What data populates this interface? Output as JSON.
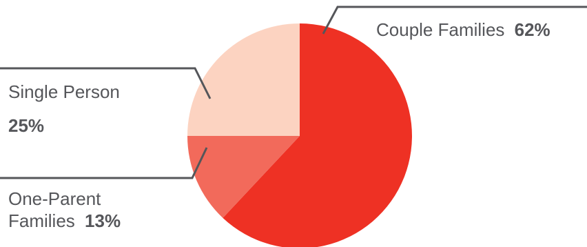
{
  "chart_data": {
    "type": "pie",
    "slices": [
      {
        "label": "Couple Families",
        "value": 62,
        "value_label": "62%",
        "color": "#ee3124"
      },
      {
        "label": "One-Parent Families",
        "value": 13,
        "value_label": "13%",
        "color": "#f26a5b"
      },
      {
        "label": "Single Person",
        "value": 25,
        "value_label": "25%",
        "color": "#fcd3c1"
      }
    ],
    "labels": {
      "couple": {
        "text": "Couple Families",
        "pct": "62%"
      },
      "single": {
        "line1": "Single Person",
        "pct": "25%"
      },
      "one_parent": {
        "line1": "One-Parent",
        "line2": "Families",
        "pct": "13%"
      }
    }
  }
}
